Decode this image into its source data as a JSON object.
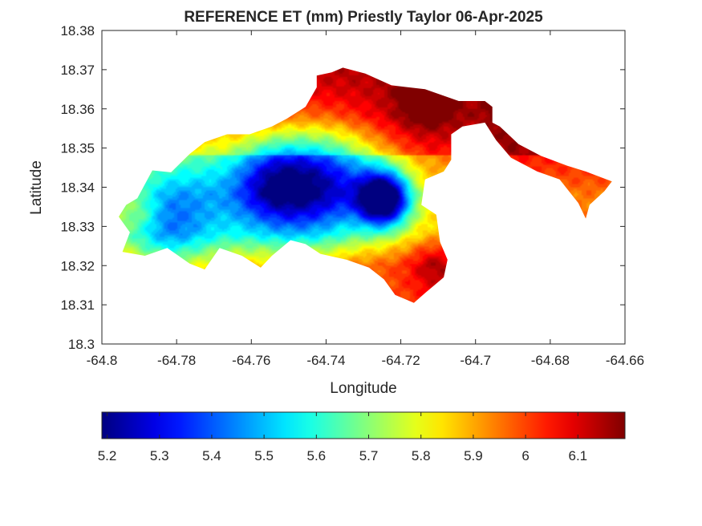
{
  "chart_data": {
    "type": "heatmap",
    "title": "REFERENCE ET (mm) Priestly Taylor 06-Apr-2025",
    "xlabel": "Longitude",
    "ylabel": "Latitude",
    "xlim": [
      -64.8,
      -64.66
    ],
    "ylim": [
      18.3,
      18.38
    ],
    "x_ticks": [
      -64.8,
      -64.78,
      -64.76,
      -64.74,
      -64.72,
      -64.7,
      -64.68,
      -64.66
    ],
    "y_ticks": [
      18.3,
      18.31,
      18.32,
      18.33,
      18.34,
      18.35,
      18.36,
      18.37,
      18.38
    ],
    "x_tick_labels": [
      "-64.8",
      "-64.78",
      "-64.76",
      "-64.74",
      "-64.72",
      "-64.7",
      "-64.68",
      "-64.66"
    ],
    "y_tick_labels": [
      "18.3",
      "18.31",
      "18.32",
      "18.33",
      "18.34",
      "18.35",
      "18.36",
      "18.37",
      "18.38"
    ],
    "grid": false,
    "colorbar": {
      "orientation": "horizontal",
      "placement": "bottom",
      "colormap": "jet",
      "range": [
        5.19,
        6.19
      ],
      "ticks": [
        5.2,
        5.3,
        5.4,
        5.5,
        5.6,
        5.7,
        5.8,
        5.9,
        6.0,
        6.1
      ],
      "tick_labels": [
        "5.2",
        "5.3",
        "5.4",
        "5.5",
        "5.6",
        "5.7",
        "5.8",
        "5.9",
        "6",
        "6.1"
      ]
    },
    "field": {
      "description_units": "mm",
      "outline": [
        [
          -64.7935,
          18.3355
        ],
        [
          -64.7905,
          18.3372
        ],
        [
          -64.7865,
          18.3443
        ],
        [
          -64.7815,
          18.3438
        ],
        [
          -64.7765,
          18.3485
        ],
        [
          -64.7725,
          18.3515
        ],
        [
          -64.7665,
          18.3535
        ],
        [
          -64.7605,
          18.3535
        ],
        [
          -64.7545,
          18.3555
        ],
        [
          -64.7505,
          18.3575
        ],
        [
          -64.7455,
          18.3605
        ],
        [
          -64.7425,
          18.3655
        ],
        [
          -64.7425,
          18.3685
        ],
        [
          -64.7385,
          18.3693
        ],
        [
          -64.7355,
          18.3705
        ],
        [
          -64.7295,
          18.369
        ],
        [
          -64.7225,
          18.366
        ],
        [
          -64.7135,
          18.365
        ],
        [
          -64.7045,
          18.362
        ],
        [
          -64.6975,
          18.362
        ],
        [
          -64.6955,
          18.3605
        ],
        [
          -64.6955,
          18.3565
        ],
        [
          -64.6935,
          18.3555
        ],
        [
          -64.6885,
          18.351
        ],
        [
          -64.6825,
          18.348
        ],
        [
          -64.6755,
          18.3455
        ],
        [
          -64.6705,
          18.344
        ],
        [
          -64.6635,
          18.3415
        ],
        [
          -64.6655,
          18.339
        ],
        [
          -64.6695,
          18.3355
        ],
        [
          -64.6705,
          18.332
        ],
        [
          -64.6725,
          18.336
        ],
        [
          -64.6775,
          18.342
        ],
        [
          -64.6835,
          18.344
        ],
        [
          -64.6905,
          18.3475
        ],
        [
          -64.6945,
          18.352
        ],
        [
          -64.6975,
          18.3565
        ],
        [
          -64.7035,
          18.3555
        ],
        [
          -64.7065,
          18.3535
        ],
        [
          -64.7065,
          18.347
        ],
        [
          -64.7085,
          18.344
        ],
        [
          -64.7135,
          18.342
        ],
        [
          -64.7145,
          18.3355
        ],
        [
          -64.7105,
          18.333
        ],
        [
          -64.7095,
          18.326
        ],
        [
          -64.7075,
          18.3215
        ],
        [
          -64.7085,
          18.317
        ],
        [
          -64.7135,
          18.313
        ],
        [
          -64.7165,
          18.3105
        ],
        [
          -64.7215,
          18.3125
        ],
        [
          -64.7245,
          18.3165
        ],
        [
          -64.7285,
          18.3195
        ],
        [
          -64.7345,
          18.3215
        ],
        [
          -64.7415,
          18.323
        ],
        [
          -64.7455,
          18.3255
        ],
        [
          -64.7495,
          18.3265
        ],
        [
          -64.7545,
          18.3225
        ],
        [
          -64.7575,
          18.3195
        ],
        [
          -64.7625,
          18.3225
        ],
        [
          -64.7685,
          18.3245
        ],
        [
          -64.7725,
          18.319
        ],
        [
          -64.7765,
          18.3205
        ],
        [
          -64.7825,
          18.3245
        ],
        [
          -64.7885,
          18.3225
        ],
        [
          -64.7945,
          18.3235
        ],
        [
          -64.7925,
          18.3285
        ],
        [
          -64.7955,
          18.3325
        ]
      ],
      "blobs": [
        {
          "lon": -64.7745,
          "lat": 18.3395,
          "sigma": 0.016,
          "delta": -0.3
        },
        {
          "lon": -64.7465,
          "lat": 18.3405,
          "sigma": 0.011,
          "delta": -0.45
        },
        {
          "lon": -64.7545,
          "lat": 18.3415,
          "sigma": 0.007,
          "delta": -0.2
        },
        {
          "lon": -64.7245,
          "lat": 18.337,
          "sigma": 0.0048,
          "delta": -0.72
        },
        {
          "lon": -64.7345,
          "lat": 18.3425,
          "sigma": 0.01,
          "delta": -0.25
        },
        {
          "lon": -64.7835,
          "lat": 18.3295,
          "sigma": 0.008,
          "delta": -0.2
        },
        {
          "lon": -64.7895,
          "lat": 18.3335,
          "sigma": 0.004,
          "delta": 0.12
        },
        {
          "lon": -64.7135,
          "lat": 18.362,
          "sigma": 0.005,
          "delta": 0.15
        },
        {
          "lon": -64.7105,
          "lat": 18.32,
          "sigma": 0.005,
          "delta": 0.15
        }
      ],
      "gradient": {
        "base": 5.95,
        "north": {
          "lat": 18.348,
          "scale": 0.01,
          "amount": 0.2
        },
        "south": {
          "lat": 18.328,
          "scale": 0.008,
          "amount": 0.15
        },
        "east": {
          "lon": -64.7,
          "scale": 0.01,
          "amount": 0.1
        }
      },
      "min_value": 5.19,
      "max_value": 6.19
    }
  }
}
